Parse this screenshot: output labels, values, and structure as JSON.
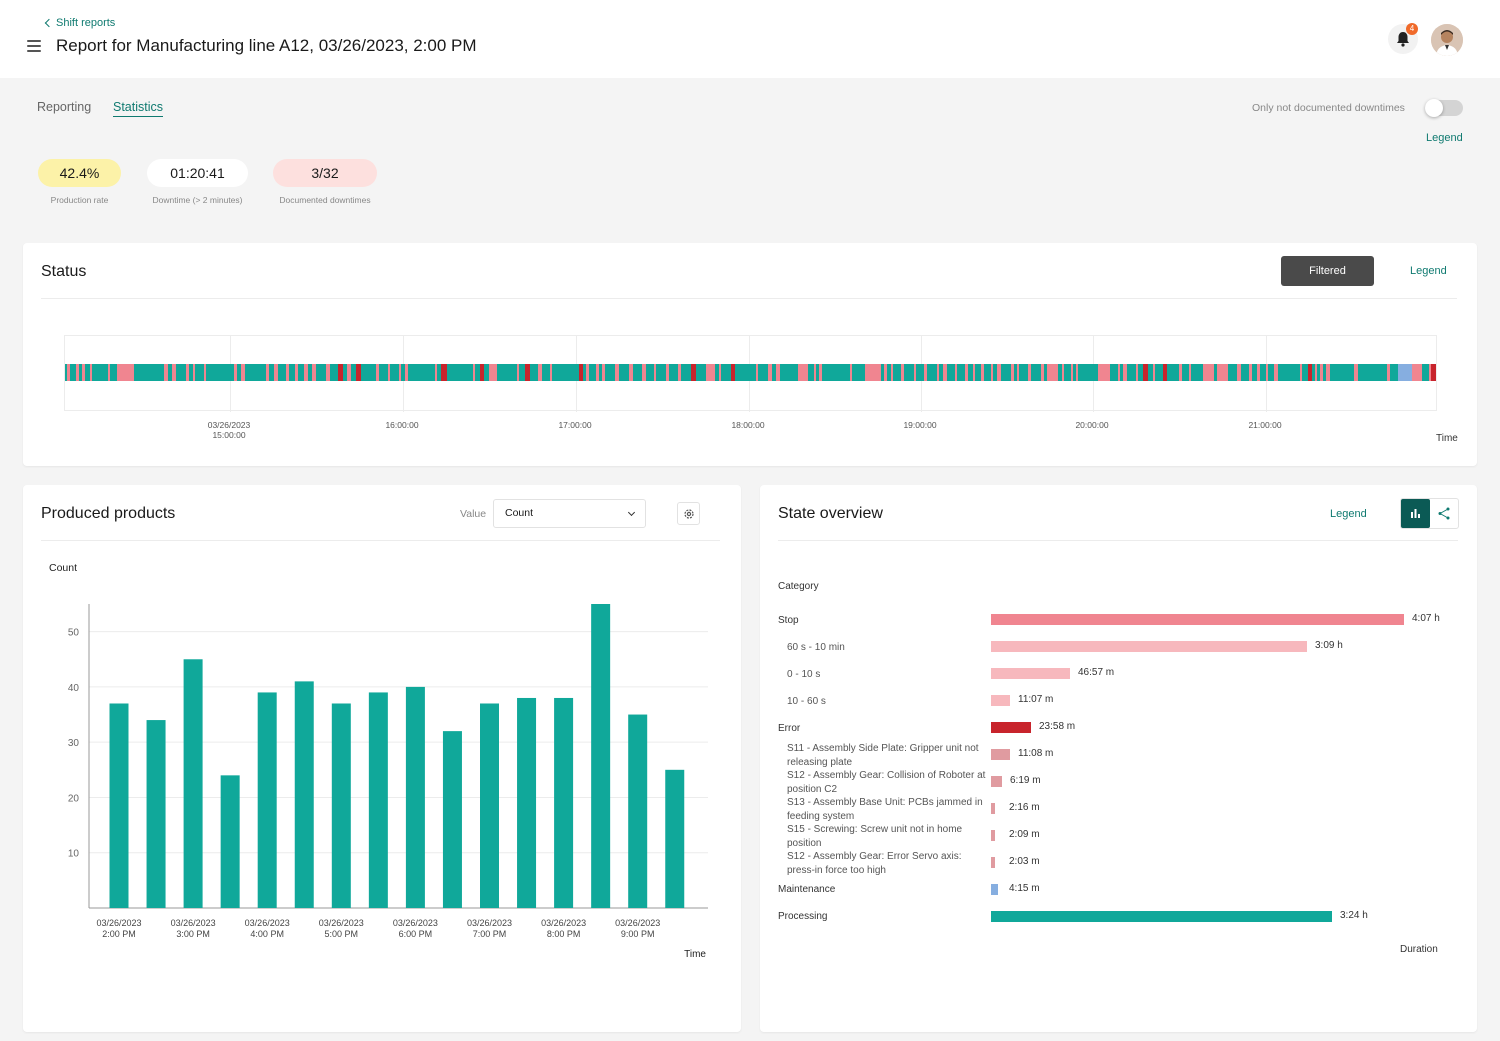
{
  "header": {
    "back_label": "Shift reports",
    "title": "Report for Manufacturing line A12, 03/26/2023, 2:00 PM",
    "notification_count": "4"
  },
  "tabs": [
    {
      "label": "Reporting",
      "active": false
    },
    {
      "label": "Statistics",
      "active": true
    }
  ],
  "toggle": {
    "label": "Only not documented downtimes",
    "on": false
  },
  "legend_label": "Legend",
  "kpis": [
    {
      "value": "42.4%",
      "label": "Production rate",
      "bg": "#fcf2a8"
    },
    {
      "value": "01:20:41",
      "label": "Downtime (> 2 minutes)",
      "bg": "#ffffff"
    },
    {
      "value": "3/32",
      "label": "Documented downtimes",
      "bg": "#fde0de"
    }
  ],
  "status": {
    "title": "Status",
    "filtered_label": "Filtered",
    "legend_label": "Legend",
    "axis_label": "Time",
    "ticks": [
      "03/26/2023 15:00:00",
      "16:00:00",
      "17:00:00",
      "18:00:00",
      "19:00:00",
      "20:00:00",
      "21:00:00"
    ],
    "colors": {
      "processing": "#10a89a",
      "stop": "#f08590",
      "error": "#c8242c",
      "maintenance": "#86aee0"
    }
  },
  "produced": {
    "title": "Produced products",
    "value_label": "Value",
    "select_value": "Count",
    "chart_data": {
      "type": "bar",
      "ylabel": "Count",
      "xlabel": "Time",
      "ylim": [
        0,
        55
      ],
      "yticks": [
        10,
        20,
        30,
        40,
        50
      ],
      "color": "#10a89a",
      "values": [
        37,
        34,
        45,
        24,
        39,
        41,
        37,
        39,
        40,
        32,
        37,
        38,
        38,
        55,
        35,
        25
      ],
      "x_labels": [
        "03/26/2023\n2:00 PM",
        "03/26/2023\n3:00 PM",
        "03/26/2023\n4:00 PM",
        "03/26/2023\n5:00 PM",
        "03/26/2023\n6:00 PM",
        "03/26/2023\n7:00 PM",
        "03/26/2023\n8:00 PM",
        "03/26/2023\n9:00 PM"
      ]
    }
  },
  "state": {
    "title": "State overview",
    "legend_label": "Legend",
    "chart_data": {
      "type": "bar",
      "orientation": "horizontal",
      "ylabel": "Category",
      "xlabel": "Duration",
      "rows": [
        {
          "label": "Stop",
          "value_text": "4:07 h",
          "minutes": 247,
          "color": "#f08590",
          "level": 0
        },
        {
          "label": "60 s - 10 min",
          "value_text": "3:09 h",
          "minutes": 189,
          "color": "#f7b8bd",
          "level": 1
        },
        {
          "label": "0 - 10 s",
          "value_text": "46:57 m",
          "minutes": 47,
          "color": "#f7b8bd",
          "level": 1
        },
        {
          "label": "10 - 60 s",
          "value_text": "11:07 m",
          "minutes": 11.1,
          "color": "#f7b8bd",
          "level": 1
        },
        {
          "label": "Error",
          "value_text": "23:58 m",
          "minutes": 24,
          "color": "#c8242c",
          "level": 0
        },
        {
          "label": "S11 - Assembly Side Plate: Gripper unit not releasing plate",
          "value_text": "11:08 m",
          "minutes": 11.1,
          "color": "#e09ba0",
          "level": 1
        },
        {
          "label": "S12 - Assembly Gear: Collision of Roboter at position C2",
          "value_text": "6:19 m",
          "minutes": 6.3,
          "color": "#e09ba0",
          "level": 1
        },
        {
          "label": "S13 - Assembly Base Unit: PCBs jammed in feeding system",
          "value_text": "2:16 m",
          "minutes": 2.3,
          "color": "#e09ba0",
          "level": 1
        },
        {
          "label": "S15 - Screwing: Screw unit not in home position",
          "value_text": "2:09 m",
          "minutes": 2.2,
          "color": "#e09ba0",
          "level": 1
        },
        {
          "label": "S12 - Assembly Gear: Error Servo axis: press-in force too high",
          "value_text": "2:03 m",
          "minutes": 2.1,
          "color": "#e09ba0",
          "level": 1
        },
        {
          "label": "Maintenance",
          "value_text": "4:15 m",
          "minutes": 4.25,
          "color": "#86aee0",
          "level": 0
        },
        {
          "label": "Processing",
          "value_text": "3:24 h",
          "minutes": 204,
          "color": "#10a89a",
          "level": 0
        }
      ]
    }
  }
}
